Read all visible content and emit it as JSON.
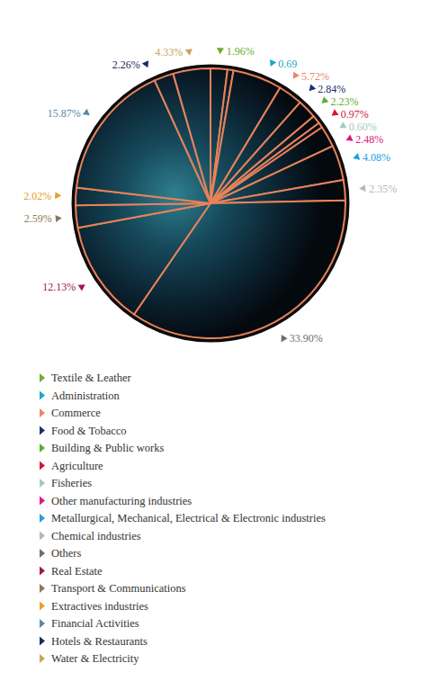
{
  "chart_data": {
    "type": "pie",
    "categories": [
      "Textile & Leather",
      "Administration",
      "Commerce",
      "Food & Tobacco",
      "Building & Public works",
      "Agriculture",
      "Fisheries",
      "Other manufacturing industries",
      "Metallurgical, Mechanical, Electrical & Electronic industries",
      "Chemical industries",
      "Others",
      "Real Estate",
      "Transport & Communications",
      "Extractives industries",
      "Financial Activities",
      "Hotels & Restaurants",
      "Water & Electricity"
    ],
    "values": [
      1.96,
      0.69,
      5.72,
      2.84,
      2.23,
      0.97,
      0.6,
      2.48,
      4.08,
      2.35,
      33.9,
      12.13,
      2.59,
      2.02,
      15.87,
      2.26,
      4.33
    ],
    "value_labels": [
      "1.96%",
      "0.69",
      "5.72%",
      "2.84%",
      "2.23%",
      "0.97%",
      "0.60%",
      "2.48%",
      "4.08%",
      "2.35%",
      "33.90%",
      "12.13%",
      "2.59%",
      "2.02%",
      "15.87%",
      "2.26%",
      "4.33%"
    ],
    "colors": [
      "#6aae2a",
      "#17a9c9",
      "#e8866a",
      "#1b2f6b",
      "#5fae2e",
      "#d4163c",
      "#9fcdb6",
      "#e0197d",
      "#1aa3dd",
      "#b4b8bc",
      "#6d6e70",
      "#9b1b4a",
      "#8c7a5a",
      "#e6a030",
      "#5b8aa8",
      "#1c2a5e",
      "#c9a45c"
    ],
    "data_labels": true,
    "legend": "bottom"
  }
}
